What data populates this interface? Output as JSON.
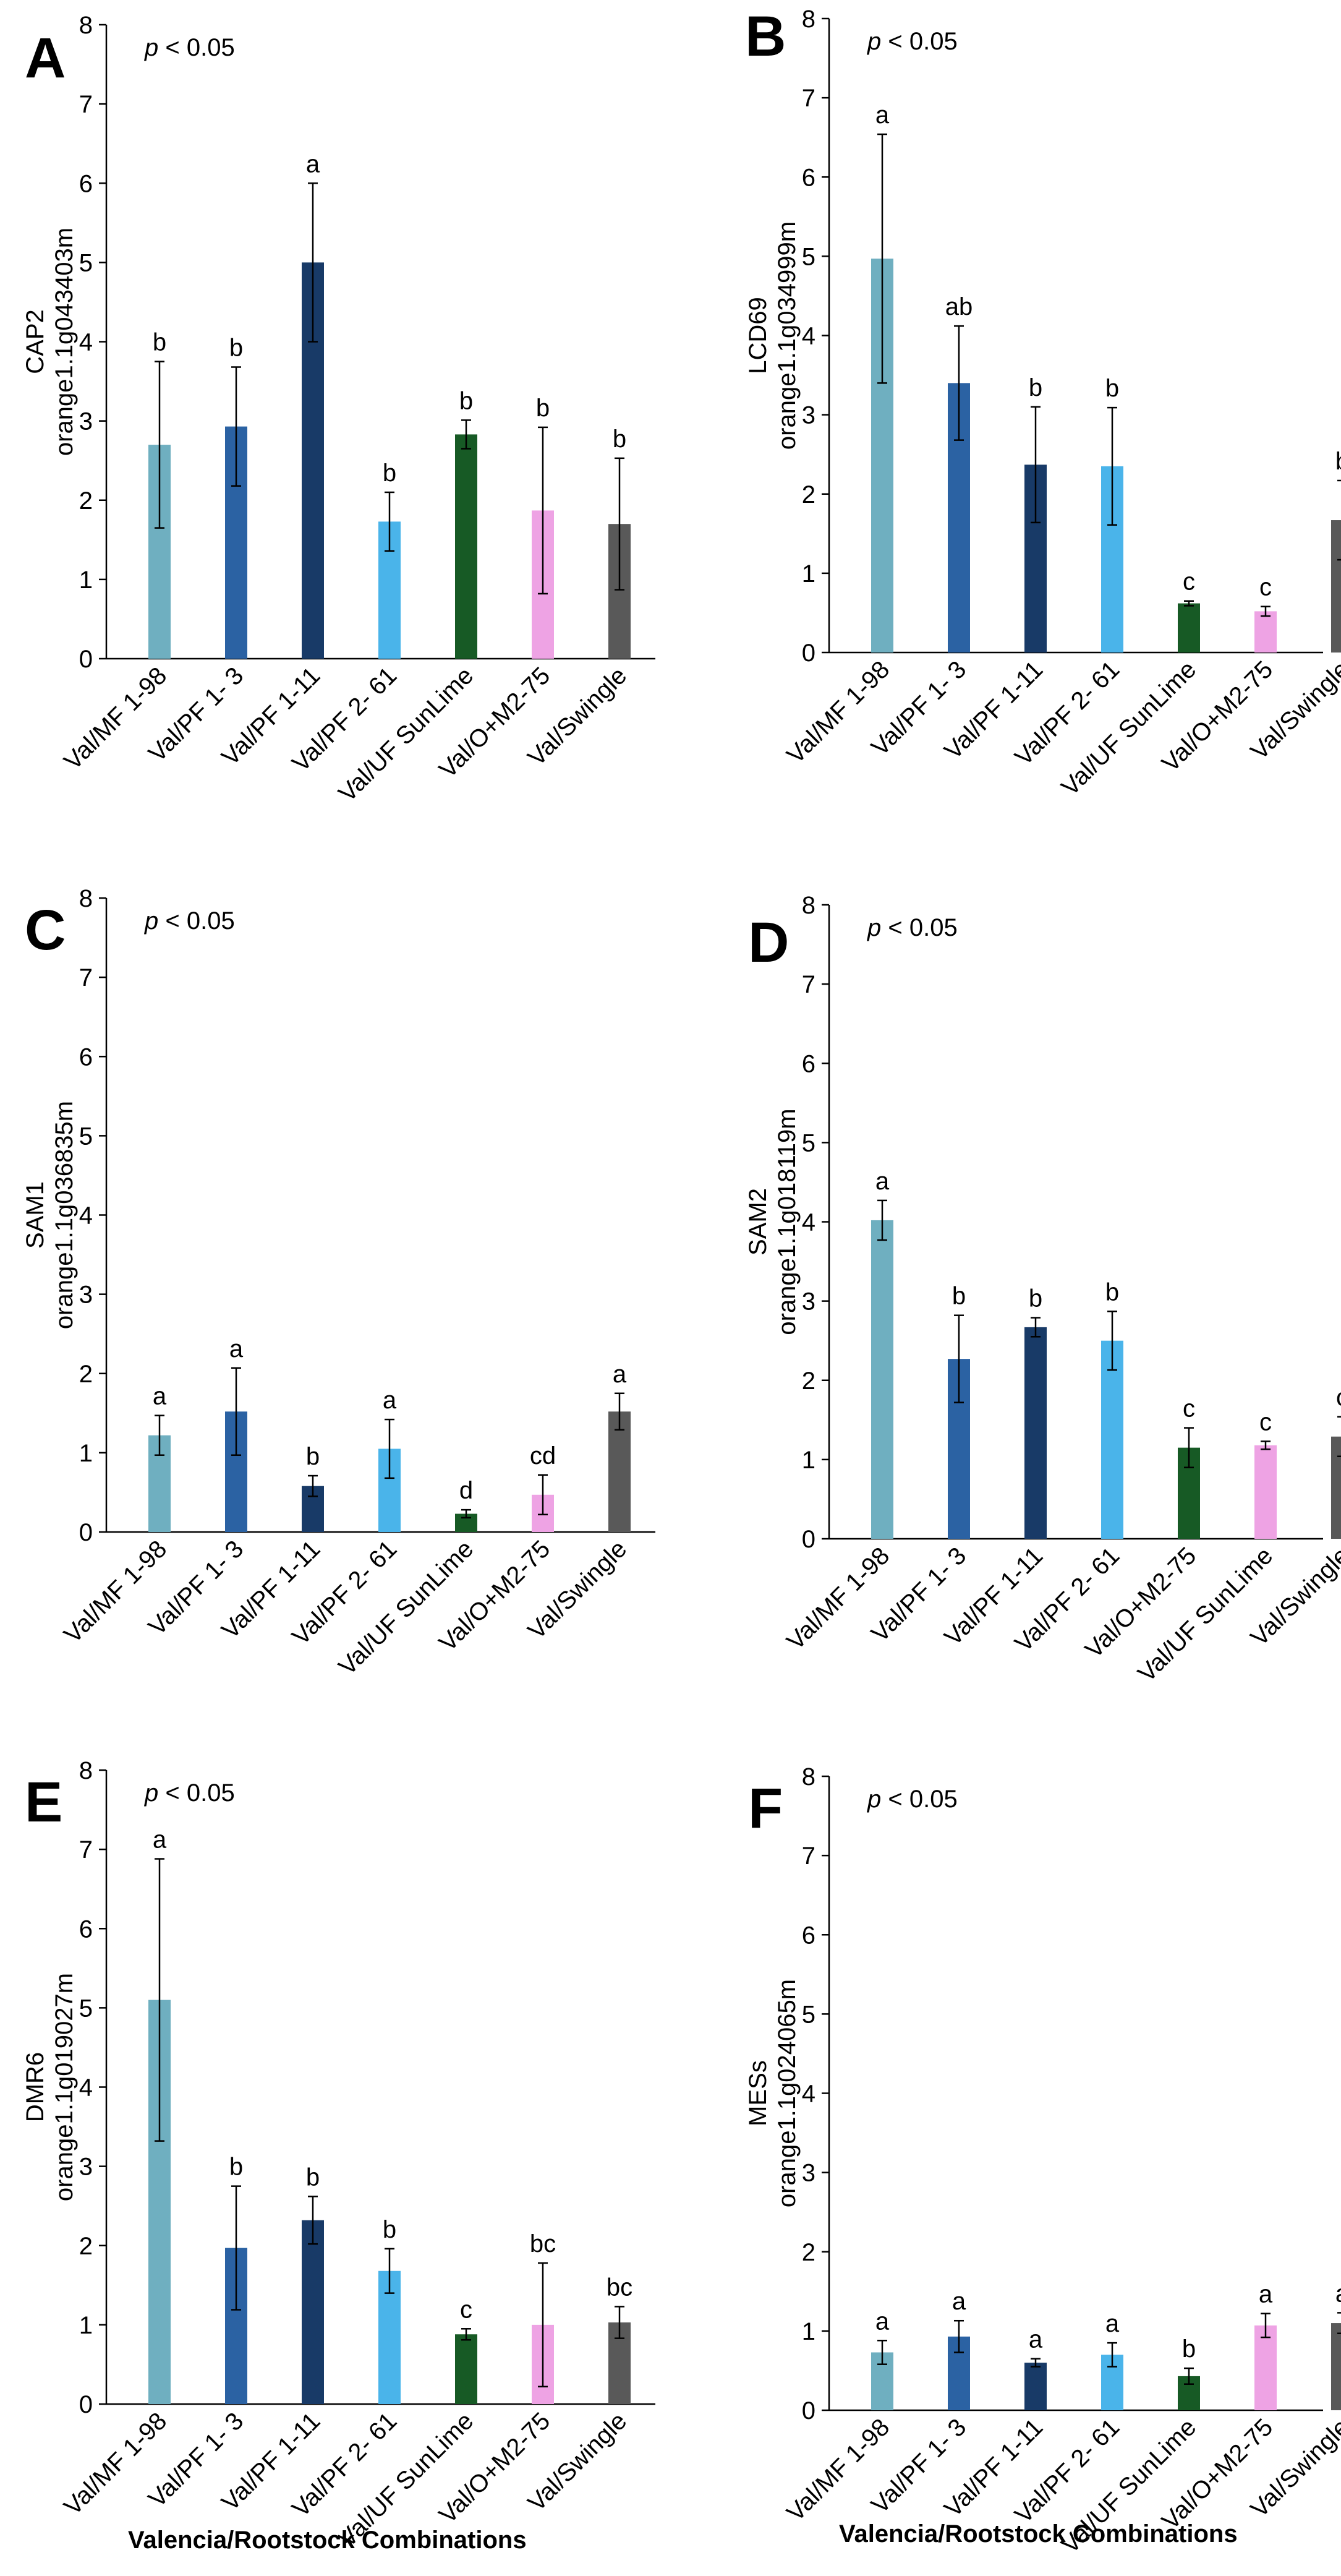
{
  "figure": {
    "xlabel_left": "Valencia/Rootstock Combinations",
    "xlabel_right": "Valencia/Rootstock Combinations"
  },
  "colors": {
    "light_teal": "#6fafc0",
    "mid_blue": "#2b62a3",
    "dark_navy": "#183a67",
    "sky_blue": "#4ab4ea",
    "dark_green": "#175a25",
    "pink": "#eea3e4",
    "gray": "#595959"
  },
  "chart_data": [
    {
      "type": "bar",
      "panel": "A",
      "stat": "p < 0.05",
      "ylabel": [
        "CAP2",
        "orange1.1g043403m"
      ],
      "ylim": [
        0,
        8
      ],
      "yticks": [
        0,
        1,
        2,
        3,
        4,
        5,
        6,
        7,
        8
      ],
      "categories": [
        "Val/MF 1-98",
        "Val/PF 1- 3",
        "Val/PF 1-11",
        "Val/PF 2- 61",
        "Val/UF SunLime",
        "Val/O+M2-75",
        "Val/Swingle"
      ],
      "values": [
        2.7,
        2.93,
        5.0,
        1.73,
        2.83,
        1.87,
        1.7
      ],
      "errors": [
        1.05,
        0.75,
        1.0,
        0.37,
        0.18,
        1.05,
        0.83
      ],
      "letters": [
        "b",
        "b",
        "a",
        "b",
        "b",
        "b",
        "b"
      ],
      "colors": [
        "#6fafc0",
        "#2b62a3",
        "#183a67",
        "#4ab4ea",
        "#175a25",
        "#eea3e4",
        "#595959"
      ]
    },
    {
      "type": "bar",
      "panel": "B",
      "stat": "p < 0.05",
      "ylabel": [
        "LCD69",
        "orange1.1g034999m"
      ],
      "ylim": [
        0,
        8
      ],
      "yticks": [
        0,
        1,
        2,
        3,
        4,
        5,
        6,
        7,
        8
      ],
      "categories": [
        "Val/MF 1-98",
        "Val/PF 1- 3",
        "Val/PF 1-11",
        "Val/PF 2- 61",
        "Val/UF SunLime",
        "Val/O+M2-75",
        "Val/Swingle"
      ],
      "values": [
        4.97,
        3.4,
        2.37,
        2.35,
        0.62,
        0.52,
        1.67
      ],
      "errors": [
        1.57,
        0.72,
        0.73,
        0.74,
        0.03,
        0.06,
        0.5
      ],
      "letters": [
        "a",
        "ab",
        "b",
        "b",
        "c",
        "c",
        "b"
      ],
      "colors": [
        "#6fafc0",
        "#2b62a3",
        "#183a67",
        "#4ab4ea",
        "#175a25",
        "#eea3e4",
        "#595959"
      ]
    },
    {
      "type": "bar",
      "panel": "C",
      "stat": "p < 0.05",
      "ylabel": [
        "SAM1",
        "orange1.1g036835m"
      ],
      "ylim": [
        0,
        8
      ],
      "yticks": [
        0,
        1,
        2,
        3,
        4,
        5,
        6,
        7,
        8
      ],
      "categories": [
        "Val/MF 1-98",
        "Val/PF 1- 3",
        "Val/PF 1-11",
        "Val/PF 2- 61",
        "Val/UF SunLime",
        "Val/O+M2-75",
        "Val/Swingle"
      ],
      "values": [
        1.22,
        1.52,
        0.58,
        1.05,
        0.23,
        0.47,
        1.52
      ],
      "errors": [
        0.25,
        0.55,
        0.13,
        0.37,
        0.05,
        0.25,
        0.23
      ],
      "letters": [
        "a",
        "a",
        "b",
        "a",
        "d",
        "cd",
        "a"
      ],
      "colors": [
        "#6fafc0",
        "#2b62a3",
        "#183a67",
        "#4ab4ea",
        "#175a25",
        "#eea3e4",
        "#595959"
      ]
    },
    {
      "type": "bar",
      "panel": "D",
      "stat": "p < 0.05",
      "ylabel": [
        "SAM2",
        "orange1.1g018119m"
      ],
      "ylim": [
        0,
        8
      ],
      "yticks": [
        0,
        1,
        2,
        3,
        4,
        5,
        6,
        7,
        8
      ],
      "categories": [
        "Val/MF 1-98",
        "Val/PF 1- 3",
        "Val/PF 1-11",
        "Val/PF 2- 61",
        "Val/O+M2-75",
        "Val/UF SunLime",
        "Val/Swingle"
      ],
      "values": [
        4.02,
        2.27,
        2.67,
        2.5,
        1.15,
        1.18,
        1.29
      ],
      "errors": [
        0.25,
        0.55,
        0.12,
        0.37,
        0.25,
        0.05,
        0.25
      ],
      "letters": [
        "a",
        "b",
        "b",
        "b",
        "c",
        "c",
        "c"
      ],
      "colors": [
        "#6fafc0",
        "#2b62a3",
        "#183a67",
        "#4ab4ea",
        "#175a25",
        "#eea3e4",
        "#595959"
      ]
    },
    {
      "type": "bar",
      "panel": "E",
      "stat": "p < 0.05",
      "ylabel": [
        "DMR6",
        "orange1.1g019027m"
      ],
      "ylim": [
        0,
        8
      ],
      "yticks": [
        0,
        1,
        2,
        3,
        4,
        5,
        6,
        7,
        8
      ],
      "categories": [
        "Val/MF 1-98",
        "Val/PF 1- 3",
        "Val/PF 1-11",
        "Val/PF 2- 61",
        "Val/UF SunLime",
        "Val/O+M2-75",
        "Val/Swingle"
      ],
      "values": [
        5.1,
        1.97,
        2.32,
        1.68,
        0.88,
        1.0,
        1.03
      ],
      "errors": [
        1.78,
        0.78,
        0.3,
        0.28,
        0.07,
        0.78,
        0.2
      ],
      "letters": [
        "a",
        "b",
        "b",
        "b",
        "c",
        "bc",
        "bc"
      ],
      "colors": [
        "#6fafc0",
        "#2b62a3",
        "#183a67",
        "#4ab4ea",
        "#175a25",
        "#eea3e4",
        "#595959"
      ]
    },
    {
      "type": "bar",
      "panel": "F",
      "stat": "p < 0.05",
      "ylabel": [
        "MESs",
        "orange1.1g024065m"
      ],
      "ylim": [
        0,
        8
      ],
      "yticks": [
        0,
        1,
        2,
        3,
        4,
        5,
        6,
        7,
        8
      ],
      "categories": [
        "Val/MF 1-98",
        "Val/PF 1- 3",
        "Val/PF 1-11",
        "Val/PF 2- 61",
        "Val/UF SunLime",
        "Val/O+M2-75",
        "Val/Swingle"
      ],
      "values": [
        0.73,
        0.93,
        0.6,
        0.7,
        0.43,
        1.07,
        1.1
      ],
      "errors": [
        0.15,
        0.2,
        0.05,
        0.15,
        0.1,
        0.15,
        0.13
      ],
      "letters": [
        "a",
        "a",
        "a",
        "a",
        "b",
        "a",
        "a"
      ],
      "colors": [
        "#6fafc0",
        "#2b62a3",
        "#183a67",
        "#4ab4ea",
        "#175a25",
        "#eea3e4",
        "#595959"
      ]
    }
  ]
}
